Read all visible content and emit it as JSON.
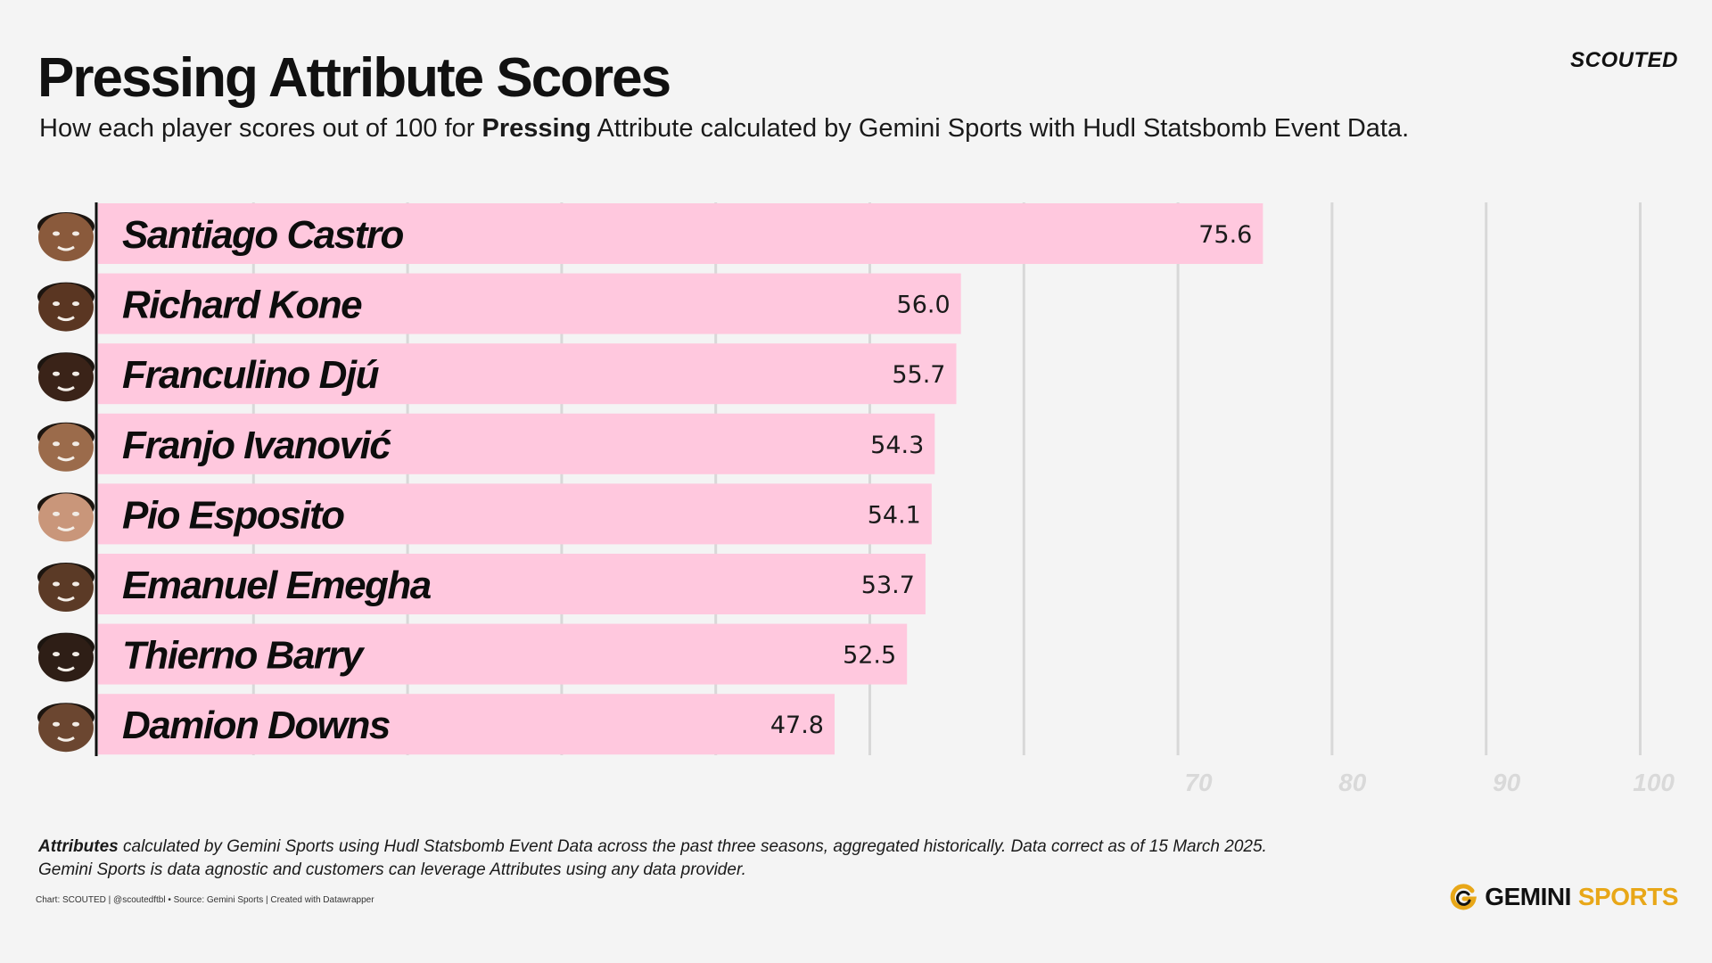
{
  "header": {
    "title": "Pressing Attribute Scores",
    "subtitle_pre": "How each player scores out of 100 for ",
    "subtitle_bold": "Pressing",
    "subtitle_post": " Attribute calculated by Gemini Sports with Hudl Statsbomb Event Data.",
    "brand": "SCOUTED"
  },
  "chart_data": {
    "type": "bar",
    "orientation": "horizontal",
    "categories": [
      "Santiago Castro",
      "Richard Kone",
      "Franculino Djú",
      "Franjo Ivanović",
      "Pio Esposito",
      "Emanuel Emegha",
      "Thierno Barry",
      "Damion Downs"
    ],
    "values": [
      75.6,
      56.0,
      55.7,
      54.3,
      54.1,
      53.7,
      52.5,
      47.8
    ],
    "value_labels": [
      "75.6",
      "56.0",
      "55.7",
      "54.3",
      "54.1",
      "53.7",
      "52.5",
      "47.8"
    ],
    "xlim": [
      0,
      100
    ],
    "gridlines": [
      10,
      20,
      30,
      40,
      50,
      60,
      70,
      80,
      90,
      100
    ],
    "tick_labels": [
      "70",
      "80",
      "90",
      "100"
    ],
    "grid": true,
    "bar_color": "#ffc8de",
    "grid_color": "#d8d8d8"
  },
  "footer": {
    "note_bold": "Attributes",
    "note_line1": " calculated by Gemini Sports using Hudl Statsbomb Event Data across the past three seasons, aggregated historically. Data correct as of 15 March 2025.",
    "note_line2": "Gemini Sports is data agnostic and customers can leverage Attributes using any data provider.",
    "credit": "Chart: SCOUTED | @scoutedftbl • Source: Gemini Sports | Created with Datawrapper",
    "logo_part1": "GEMINI",
    "logo_part2": "SPORTS"
  },
  "colors": {
    "logo_accent": "#e8a718"
  }
}
